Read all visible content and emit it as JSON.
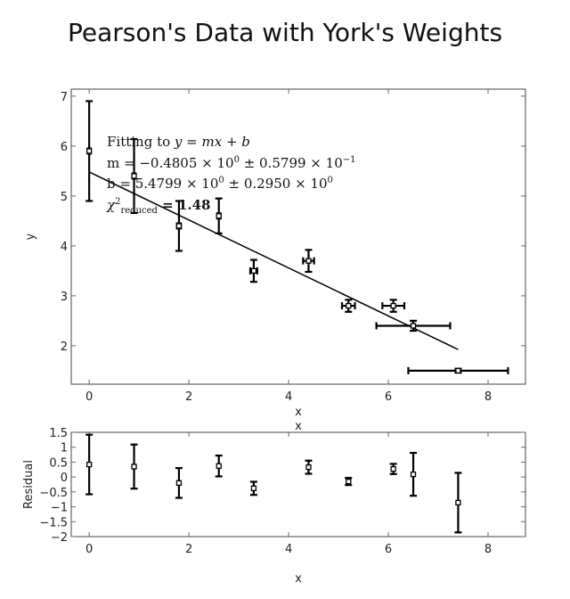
{
  "chart_data": [
    {
      "type": "scatter",
      "title": "Pearson's Data with York's Weights",
      "xlabel": "x",
      "ylabel": "y",
      "xlim": [
        -0.36,
        8.75
      ],
      "ylim": [
        1.23,
        7.14
      ],
      "xticks": [
        0,
        2,
        4,
        6,
        8
      ],
      "yticks": [
        2,
        3,
        4,
        5,
        6,
        7
      ],
      "x": [
        0,
        0.9,
        1.8,
        2.6,
        3.3,
        4.4,
        5.2,
        6.1,
        6.5,
        7.4
      ],
      "y": [
        5.9,
        5.4,
        4.4,
        4.6,
        3.5,
        3.7,
        2.8,
        2.8,
        2.4,
        1.5
      ],
      "xerr": [
        0.03,
        0.03,
        0.04,
        0.035,
        0.07,
        0.11,
        0.13,
        0.22,
        0.74,
        1.0
      ],
      "yerr": [
        1.0,
        0.74,
        0.5,
        0.35,
        0.22,
        0.22,
        0.12,
        0.12,
        0.1,
        0.04
      ],
      "fit": {
        "slope": -0.4805,
        "intercept": 5.4799,
        "x_range": [
          0,
          7.4
        ]
      },
      "annotation": {
        "line1_prefix": "Fitting to ",
        "line1_eq": "y = mx + b",
        "m_line": "m = −0.4805 × 10",
        "m_exp": "0",
        "m_pm": " ± 0.5799 × 10",
        "m_pm_exp": "−1",
        "b_line": "b = 5.4799 × 10",
        "b_exp": "0",
        "b_pm": " ± 0.2950 × 10",
        "b_pm_exp": "0",
        "chi": "χ",
        "chi_sup": "2",
        "chi_sub": "reduced",
        "chi_val": " = 1.48"
      }
    },
    {
      "type": "scatter",
      "xlabel": "x",
      "ylabel": "Residual",
      "top_label": "x",
      "xlim": [
        -0.36,
        8.75
      ],
      "ylim": [
        -2,
        1.5
      ],
      "xticks": [
        0,
        2,
        4,
        6,
        8
      ],
      "yticks": [
        -2,
        -1.5,
        -1,
        -0.5,
        0,
        0.5,
        1,
        1.5
      ],
      "ytick_labels": [
        "−2",
        "−1.5",
        "−1",
        "−0.5",
        "0",
        "0.5",
        "1",
        "1.5"
      ],
      "x": [
        0,
        0.9,
        1.8,
        2.6,
        3.3,
        4.4,
        5.2,
        6.1,
        6.5,
        7.4
      ],
      "y": [
        0.42,
        0.35,
        -0.2,
        0.37,
        -0.38,
        0.33,
        -0.15,
        0.27,
        0.09,
        -0.86
      ],
      "yerr": [
        1.0,
        0.74,
        0.5,
        0.35,
        0.22,
        0.22,
        0.12,
        0.17,
        0.72,
        1.0
      ]
    }
  ]
}
